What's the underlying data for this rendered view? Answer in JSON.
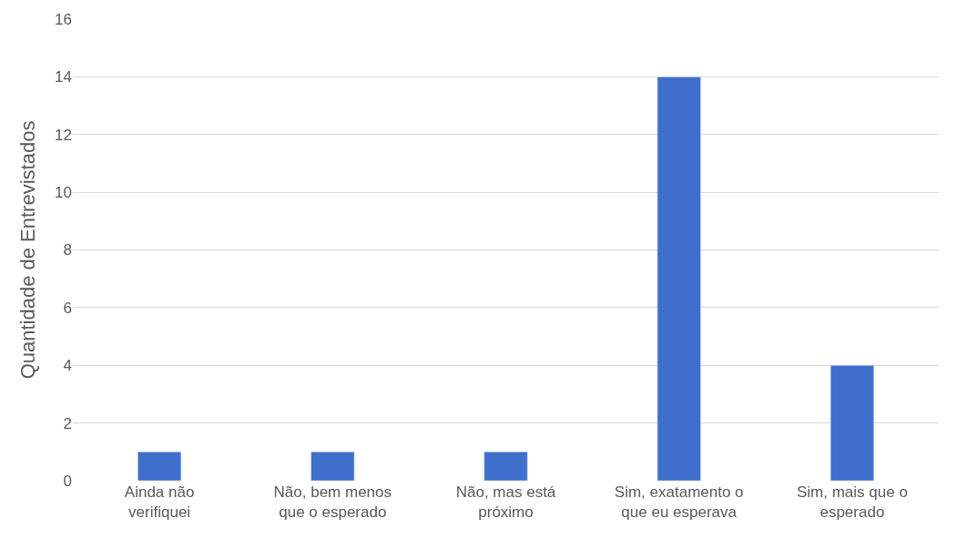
{
  "chart_data": {
    "type": "bar",
    "ylabel": "Quantidade de Entrevistados",
    "categories": [
      "Ainda não verifiquei",
      "Não, bem menos que o esperado",
      "Não, mas está próximo",
      "Sim, exatamento o que eu esperava",
      "Sim, mais que o esperado"
    ],
    "values": [
      1,
      1,
      1,
      14,
      4
    ],
    "color": "#3f6fcc",
    "ylim": [
      0,
      16
    ],
    "yticks": [
      0,
      2,
      4,
      6,
      8,
      10,
      12,
      14,
      16
    ],
    "grid": "y"
  }
}
